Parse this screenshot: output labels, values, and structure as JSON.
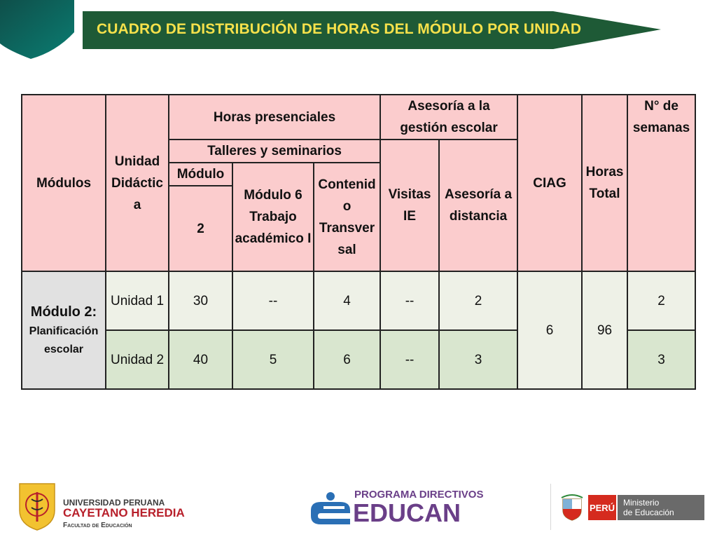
{
  "slide": {
    "title": "CUADRO DE DISTRIBUCIÓN DE HORAS DEL MÓDULO POR UNIDAD"
  },
  "table": {
    "headers": {
      "modulos": "Módulos",
      "unidad_didactica": "Unidad Didáctic a",
      "horas_presenciales": "Horas presenciales",
      "asesoria_gestion": "Asesoría a la gestión escolar",
      "ciag": "CIAG",
      "horas_total": "Horas Total",
      "n_semanas": "N° de semanas",
      "talleres": "Talleres y seminarios",
      "modulo": "Módulo",
      "modulo_num": "2",
      "modulo6": "Módulo 6 Trabajo académico I",
      "contenido": "Contenid o Transver sal",
      "visitas": "Visitas IE",
      "asesoria_distancia": "Asesoría a distancia"
    },
    "module_label_1": "Módulo 2:",
    "module_label_2": "Planificación escolar",
    "rows": [
      {
        "unidad": "Unidad 1",
        "modulo2": "30",
        "modulo6": "--",
        "contenido": "4",
        "visitas": "--",
        "distancia": "2",
        "semanas": "2"
      },
      {
        "unidad": "Unidad 2",
        "modulo2": "40",
        "modulo6": "5",
        "contenido": "6",
        "visitas": "--",
        "distancia": "3",
        "semanas": "3"
      }
    ],
    "ciag_value": "6",
    "horas_total_value": "96"
  },
  "footer": {
    "uph_line1": "UNIVERSIDAD PERUANA",
    "uph_line2": "CAYETANO HEREDIA",
    "uph_line3": "Facultad de Educación",
    "educan_line1": "PROGRAMA DIRECTIVOS",
    "educan_line2": "EDUCAN",
    "peru": "PERÚ",
    "minedu_line1": "Ministerio",
    "minedu_line2": "de Educación"
  },
  "colors": {
    "banner_green": "#1e5a36",
    "title_yellow": "#f6e14b",
    "header_pink": "#fbcccd",
    "row1_green": "#eef1e7",
    "row2_green": "#d9e6cf",
    "module_gray": "#e1e1e1"
  }
}
